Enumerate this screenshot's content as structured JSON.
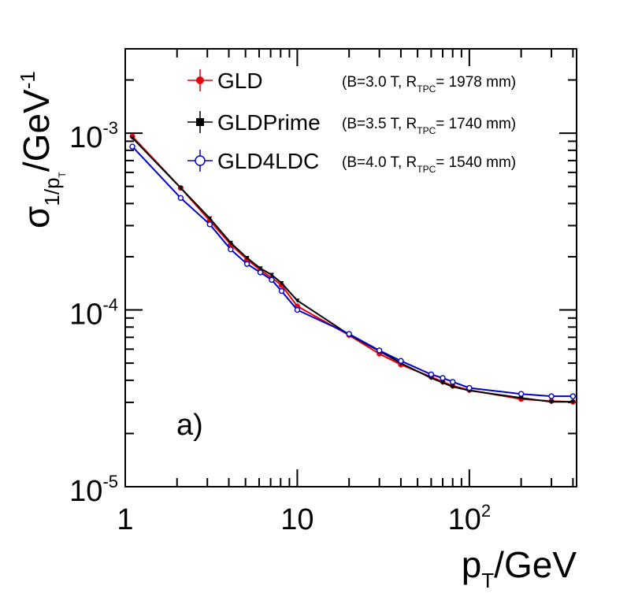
{
  "chart_data": {
    "type": "line",
    "title": "",
    "xlabel": {
      "main": "p",
      "sub": "T",
      "rest": "/GeV"
    },
    "ylabel": {
      "sigma": "σ",
      "sub_main": "1/p",
      "sub_sub": "T",
      "rest": "/GeV",
      "sup": "-1"
    },
    "xscale": "log",
    "yscale": "log",
    "xlim": [
      1,
      420
    ],
    "ylim": [
      1e-05,
      0.003
    ],
    "x_ticks": [
      {
        "value": 1,
        "base": "1",
        "exp": ""
      },
      {
        "value": 10,
        "base": "10",
        "exp": ""
      },
      {
        "value": 100,
        "base": "10",
        "exp": "2"
      }
    ],
    "y_ticks": [
      {
        "value": 1e-05,
        "base": "10",
        "exp": "-5"
      },
      {
        "value": 0.0001,
        "base": "10",
        "exp": "-4"
      },
      {
        "value": 0.001,
        "base": "10",
        "exp": "-3"
      }
    ],
    "grid": false,
    "legend_position": "top-left",
    "panel_label": "a)",
    "series": [
      {
        "name": "GLD",
        "note": {
          "prefix": "(B=3.0 T, R",
          "sub": "TPC",
          "suffix": "= 1978 mm)"
        },
        "color": "#e8000b",
        "marker": "filled-circle",
        "x": [
          1.1,
          2.1,
          3.1,
          4.1,
          5.1,
          6.1,
          7.1,
          8.1,
          10,
          20,
          30,
          40,
          60,
          70,
          80,
          100,
          200,
          300,
          400
        ],
        "y": [
          0.00096,
          0.00049,
          0.00032,
          0.000235,
          0.000193,
          0.000168,
          0.000152,
          0.000138,
          0.000105,
          7.2e-05,
          5.65e-05,
          4.9e-05,
          4.18e-05,
          3.92e-05,
          3.72e-05,
          3.52e-05,
          3.13e-05,
          3.05e-05,
          3.02e-05
        ]
      },
      {
        "name": "GLDPrime",
        "note": {
          "prefix": "(B=3.5 T, R",
          "sub": "TPC",
          "suffix": "= 1740 mm)"
        },
        "color": "#000000",
        "marker": "filled-triangle",
        "x": [
          1.1,
          2.1,
          3.1,
          4.1,
          5.1,
          6.1,
          7.1,
          8.1,
          10,
          20,
          30,
          40,
          60,
          70,
          80,
          100,
          200,
          300,
          400
        ],
        "y": [
          0.00094,
          0.00049,
          0.00033,
          0.00024,
          0.000197,
          0.000172,
          0.000158,
          0.000142,
          0.000113,
          7.25e-05,
          5.85e-05,
          5e-05,
          4.12e-05,
          3.88e-05,
          3.68e-05,
          3.5e-05,
          3.18e-05,
          3.02e-05,
          3.02e-05
        ]
      },
      {
        "name": "GLD4LDC",
        "note": {
          "prefix": "(B=4.0 T, R",
          "sub": "TPC",
          "suffix": "= 1540 mm)"
        },
        "color": "#0000cc",
        "marker": "open-circle",
        "x": [
          1.1,
          2.1,
          3.1,
          4.1,
          5.1,
          6.1,
          7.1,
          8.1,
          10,
          20,
          30,
          40,
          60,
          70,
          80,
          100,
          200,
          300,
          400
        ],
        "y": [
          0.00084,
          0.00043,
          0.000305,
          0.00022,
          0.000182,
          0.000163,
          0.000148,
          0.000128,
          0.0001,
          7.32e-05,
          5.9e-05,
          5.15e-05,
          4.32e-05,
          4.12e-05,
          3.92e-05,
          3.62e-05,
          3.35e-05,
          3.25e-05,
          3.25e-05
        ]
      }
    ]
  }
}
